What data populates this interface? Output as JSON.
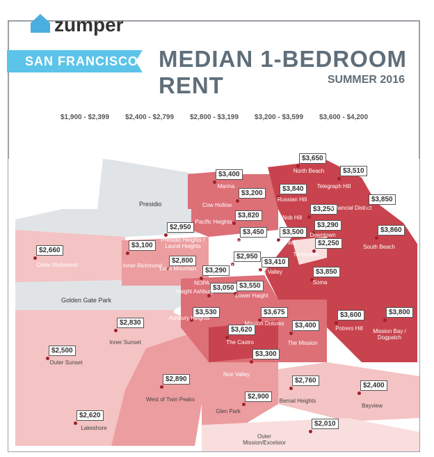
{
  "header": {
    "logo": "zumper",
    "city": "SAN FRANCISCO",
    "title": "MEDIAN 1-BEDROOM RENT",
    "subtitle": "SUMMER 2016"
  },
  "legend": [
    {
      "label": "$1,900 - $2,399",
      "color": "#f9dede"
    },
    {
      "label": "$2,400 - $2,799",
      "color": "#f4c3c3"
    },
    {
      "label": "$2,800 - $3,199",
      "color": "#ec9d9f"
    },
    {
      "label": "$3,200 - $3,599",
      "color": "#dd6f77"
    },
    {
      "label": "$3,600 - $4,200",
      "color": "#c8434d"
    }
  ],
  "areas": [
    "Presidio",
    "Golden Gate Park"
  ],
  "neighborhoods": [
    {
      "name": "Marina",
      "price": "$3,400"
    },
    {
      "name": "Cow Hollow",
      "price": "$3,200"
    },
    {
      "name": "Pacific Heights",
      "price": "$3,820"
    },
    {
      "name": "Presidio Heights / Laurel Heights",
      "price": "$2,950"
    },
    {
      "name": "Lower Pacific Heights",
      "price": "$3,450"
    },
    {
      "name": "Inner Richmond",
      "price": "$3,100"
    },
    {
      "name": "Outer Richmond",
      "price": "$2,660"
    },
    {
      "name": "Lone Mountain",
      "price": "$2,800"
    },
    {
      "name": "Western Addition",
      "price": "$2,950"
    },
    {
      "name": "NOPA",
      "price": "$3,290"
    },
    {
      "name": "Haight Ashbury",
      "price": "$3,050"
    },
    {
      "name": "Hayes Valley",
      "price": "$3,410"
    },
    {
      "name": "Lower Haight",
      "price": "$3,550"
    },
    {
      "name": "Tenderloin",
      "price": "$2,250"
    },
    {
      "name": "Civic Center",
      "price": "$3,500"
    },
    {
      "name": "Nob Hill",
      "price": "$3,250"
    },
    {
      "name": "Downtown",
      "price": "$3,290"
    },
    {
      "name": "Russian Hill",
      "price": "$3,840"
    },
    {
      "name": "North Beach",
      "price": "$3,650"
    },
    {
      "name": "Telegraph Hill",
      "price": "$3,510"
    },
    {
      "name": "Financial District",
      "price": "$3,850"
    },
    {
      "name": "South Beach",
      "price": "$3,860"
    },
    {
      "name": "Soma",
      "price": "$3,850"
    },
    {
      "name": "Ashbury Heights",
      "price": "$3,530"
    },
    {
      "name": "The Castro",
      "price": "$3,620"
    },
    {
      "name": "Mission Dolores",
      "price": "$3,675"
    },
    {
      "name": "The Mission",
      "price": "$3,400"
    },
    {
      "name": "Potrero Hill",
      "price": "$3,600"
    },
    {
      "name": "Mission Bay / Dogpatch",
      "price": "$3,800"
    },
    {
      "name": "Inner Sunset",
      "price": "$2,830"
    },
    {
      "name": "Outer Sunset",
      "price": "$2,500"
    },
    {
      "name": "Noe Valley",
      "price": "$3,300"
    },
    {
      "name": "West of Twin Peaks",
      "price": "$2,890"
    },
    {
      "name": "Glen Park",
      "price": "$2,900"
    },
    {
      "name": "Bernal Heights",
      "price": "$2,760"
    },
    {
      "name": "Bayview",
      "price": "$2,400"
    },
    {
      "name": "Lakeshore",
      "price": "$2,620"
    },
    {
      "name": "Outer Mission/Excelsior",
      "price": "$2,010"
    }
  ]
}
